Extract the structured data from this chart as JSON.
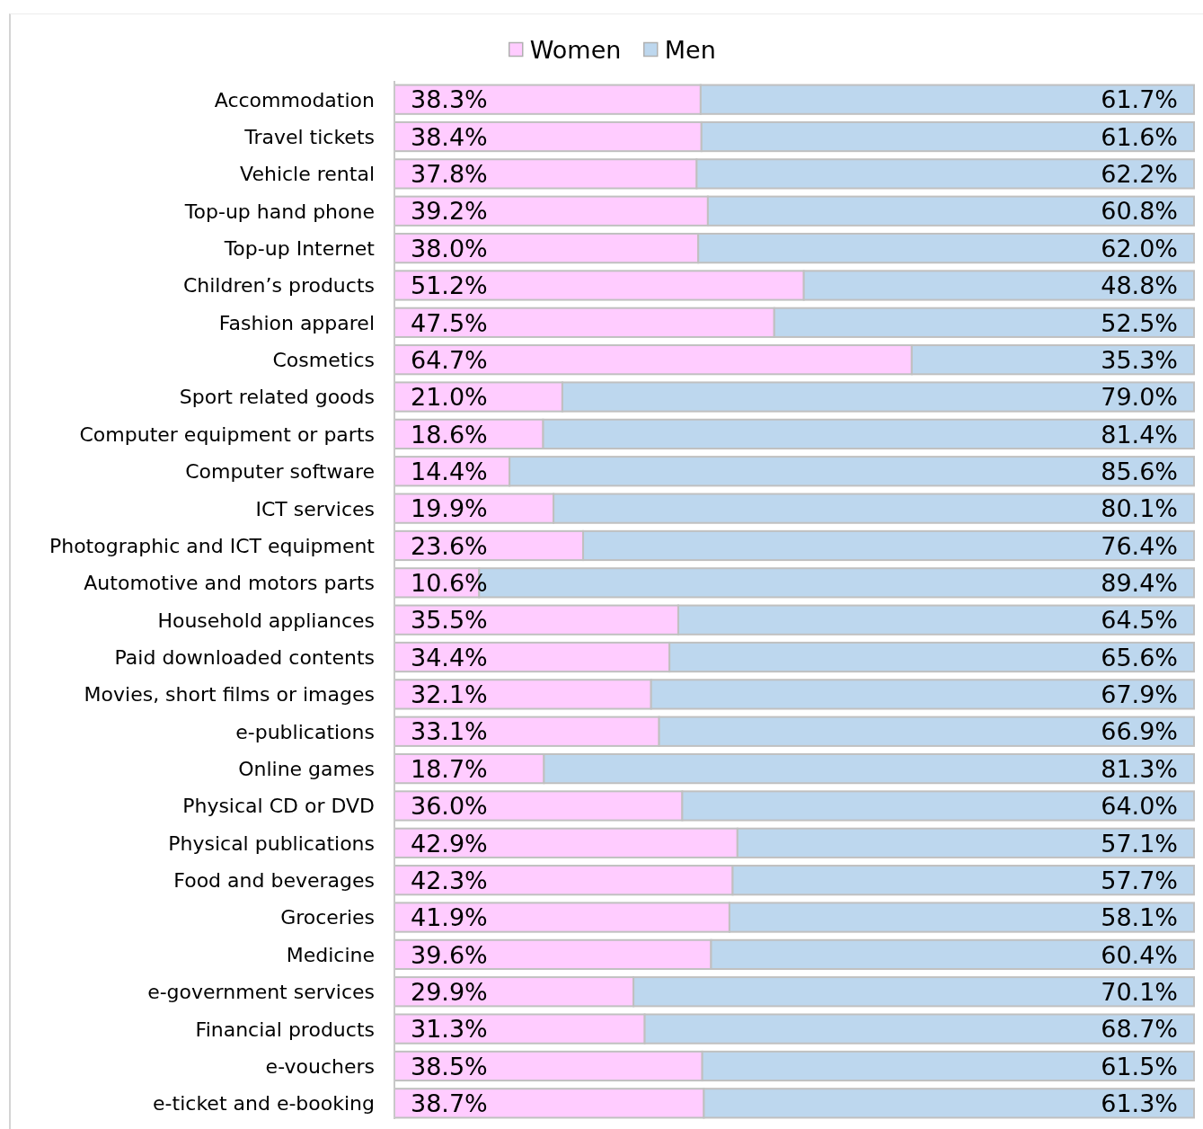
{
  "chart_data": {
    "type": "bar",
    "orientation": "horizontal",
    "stacked": true,
    "categories": [
      "Accommodation",
      "Travel tickets",
      "Vehicle rental",
      "Top-up hand phone",
      "Top-up Internet",
      "Children’s products",
      "Fashion apparel",
      "Cosmetics",
      "Sport related goods",
      "Computer equipment or parts",
      "Computer software",
      "ICT services",
      "Photographic and ICT equipment",
      "Automotive and motors parts",
      "Household appliances",
      "Paid downloaded contents",
      "Movies, short films or images",
      "e-publications",
      "Online games",
      "Physical CD or DVD",
      "Physical publications",
      "Food and beverages",
      "Groceries",
      "Medicine",
      "e-government services",
      "Financial products",
      "e-vouchers",
      "e-ticket and e-booking"
    ],
    "series": [
      {
        "name": "Women",
        "color": "#ffccff",
        "values": [
          38.3,
          38.4,
          37.8,
          39.2,
          38.0,
          51.2,
          47.5,
          64.7,
          21.0,
          18.6,
          14.4,
          19.9,
          23.6,
          10.6,
          35.5,
          34.4,
          32.1,
          33.1,
          18.7,
          36.0,
          42.9,
          42.3,
          41.9,
          39.6,
          29.9,
          31.3,
          38.5,
          38.7
        ],
        "value_labels": [
          "38.3%",
          "38.4%",
          "37.8%",
          "39.2%",
          "38.0%",
          "51.2%",
          "47.5%",
          "64.7%",
          "21.0%",
          "18.6%",
          "14.4%",
          "19.9%",
          "23.6%",
          "10.6%",
          "35.5%",
          "34.4%",
          "32.1%",
          "33.1%",
          "18.7%",
          "36.0%",
          "42.9%",
          "42.3%",
          "41.9%",
          "39.6%",
          "29.9%",
          "31.3%",
          "38.5%",
          "38.7%"
        ]
      },
      {
        "name": "Men",
        "color": "#bdd7ee",
        "values": [
          61.7,
          61.6,
          62.2,
          60.8,
          62.0,
          48.8,
          52.5,
          35.3,
          79.0,
          81.4,
          85.6,
          80.1,
          76.4,
          89.4,
          64.5,
          65.6,
          67.9,
          66.9,
          81.3,
          64.0,
          57.1,
          57.7,
          58.1,
          60.4,
          70.1,
          68.7,
          61.5,
          61.3
        ],
        "value_labels": [
          "61.7%",
          "61.6%",
          "62.2%",
          "60.8%",
          "62.0%",
          "48.8%",
          "52.5%",
          "35.3%",
          "79.0%",
          "81.4%",
          "85.6%",
          "80.1%",
          "76.4%",
          "89.4%",
          "64.5%",
          "65.6%",
          "67.9%",
          "66.9%",
          "81.3%",
          "64.0%",
          "57.1%",
          "57.7%",
          "58.1%",
          "60.4%",
          "70.1%",
          "68.7%",
          "61.5%",
          "61.3%"
        ]
      }
    ],
    "xlim": [
      0,
      100
    ],
    "tick_labels": "y",
    "legend": "top"
  }
}
